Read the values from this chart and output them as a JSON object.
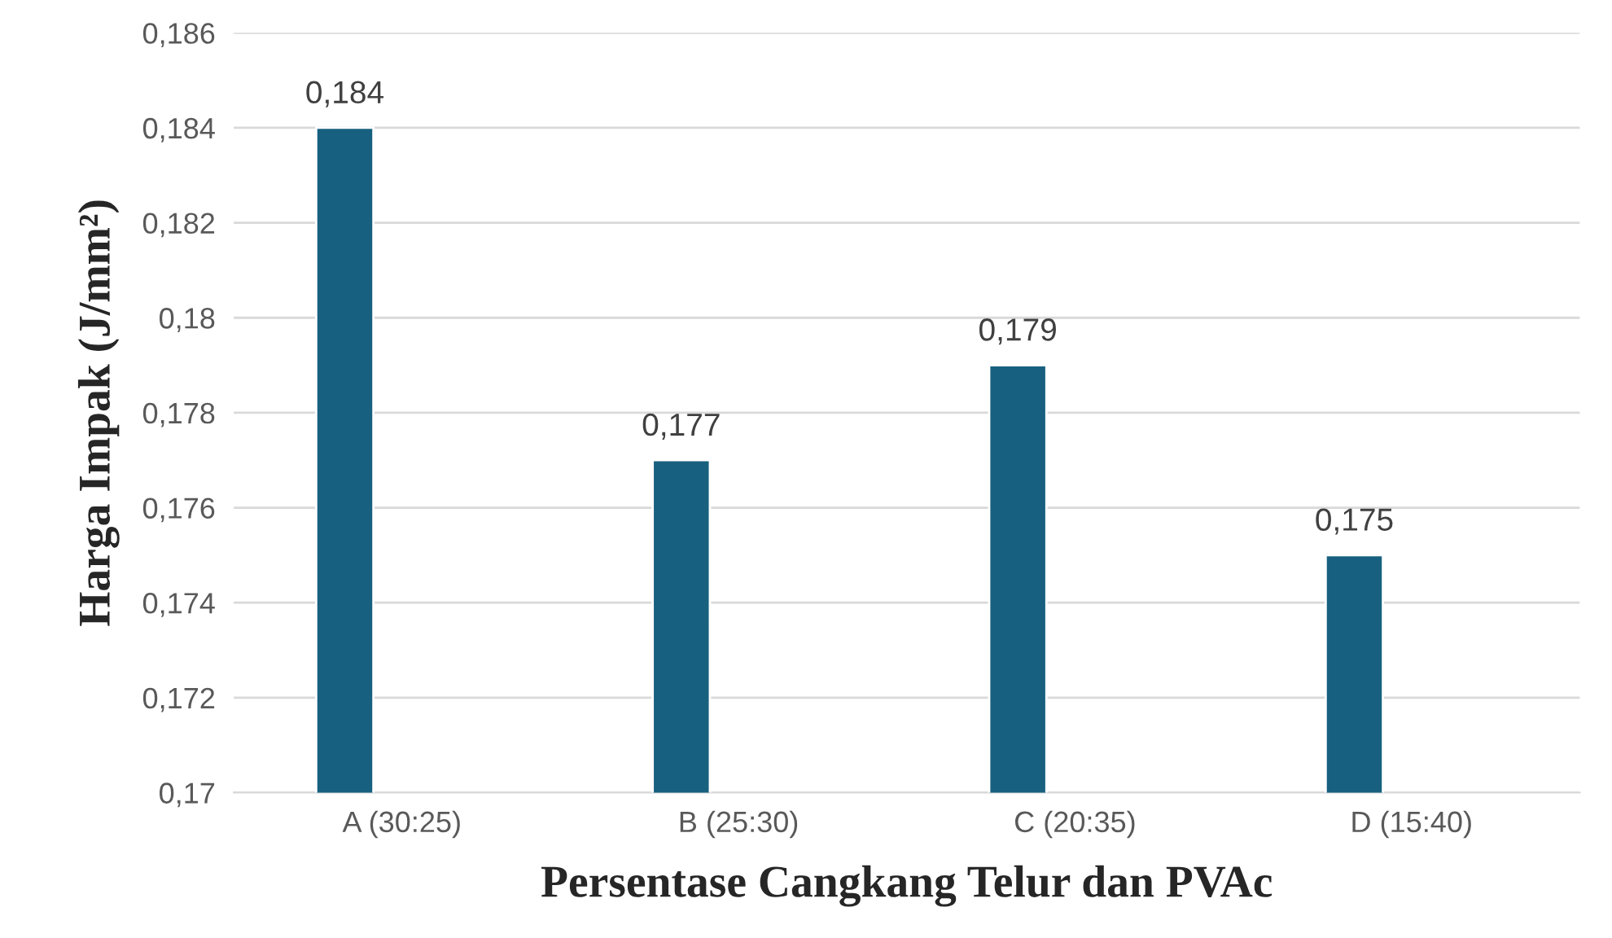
{
  "chart_data": {
    "type": "bar",
    "xlabel": "Persentase Cangkang Telur dan PVAc",
    "ylabel": "Harga Impak (J/mm²)",
    "categories": [
      "A (30:25)",
      "B (25:30)",
      "C (20:35)",
      "D (15:40)"
    ],
    "values": [
      0.184,
      0.177,
      0.179,
      0.175
    ],
    "color": "#17607f",
    "value_labels": [
      "0,184",
      "0,177",
      "0,179",
      "0,175"
    ],
    "ylim": [
      0.17,
      0.186
    ],
    "yticks": [
      {
        "value": 0.17,
        "label": "0,17"
      },
      {
        "value": 0.172,
        "label": "0,172"
      },
      {
        "value": 0.174,
        "label": "0,174"
      },
      {
        "value": 0.176,
        "label": "0,176"
      },
      {
        "value": 0.178,
        "label": "0,178"
      },
      {
        "value": 0.18,
        "label": "0,18"
      },
      {
        "value": 0.182,
        "label": "0,182"
      },
      {
        "value": 0.184,
        "label": "0,184"
      },
      {
        "value": 0.186,
        "label": "0,186"
      }
    ],
    "grid": "y",
    "legend": false
  }
}
